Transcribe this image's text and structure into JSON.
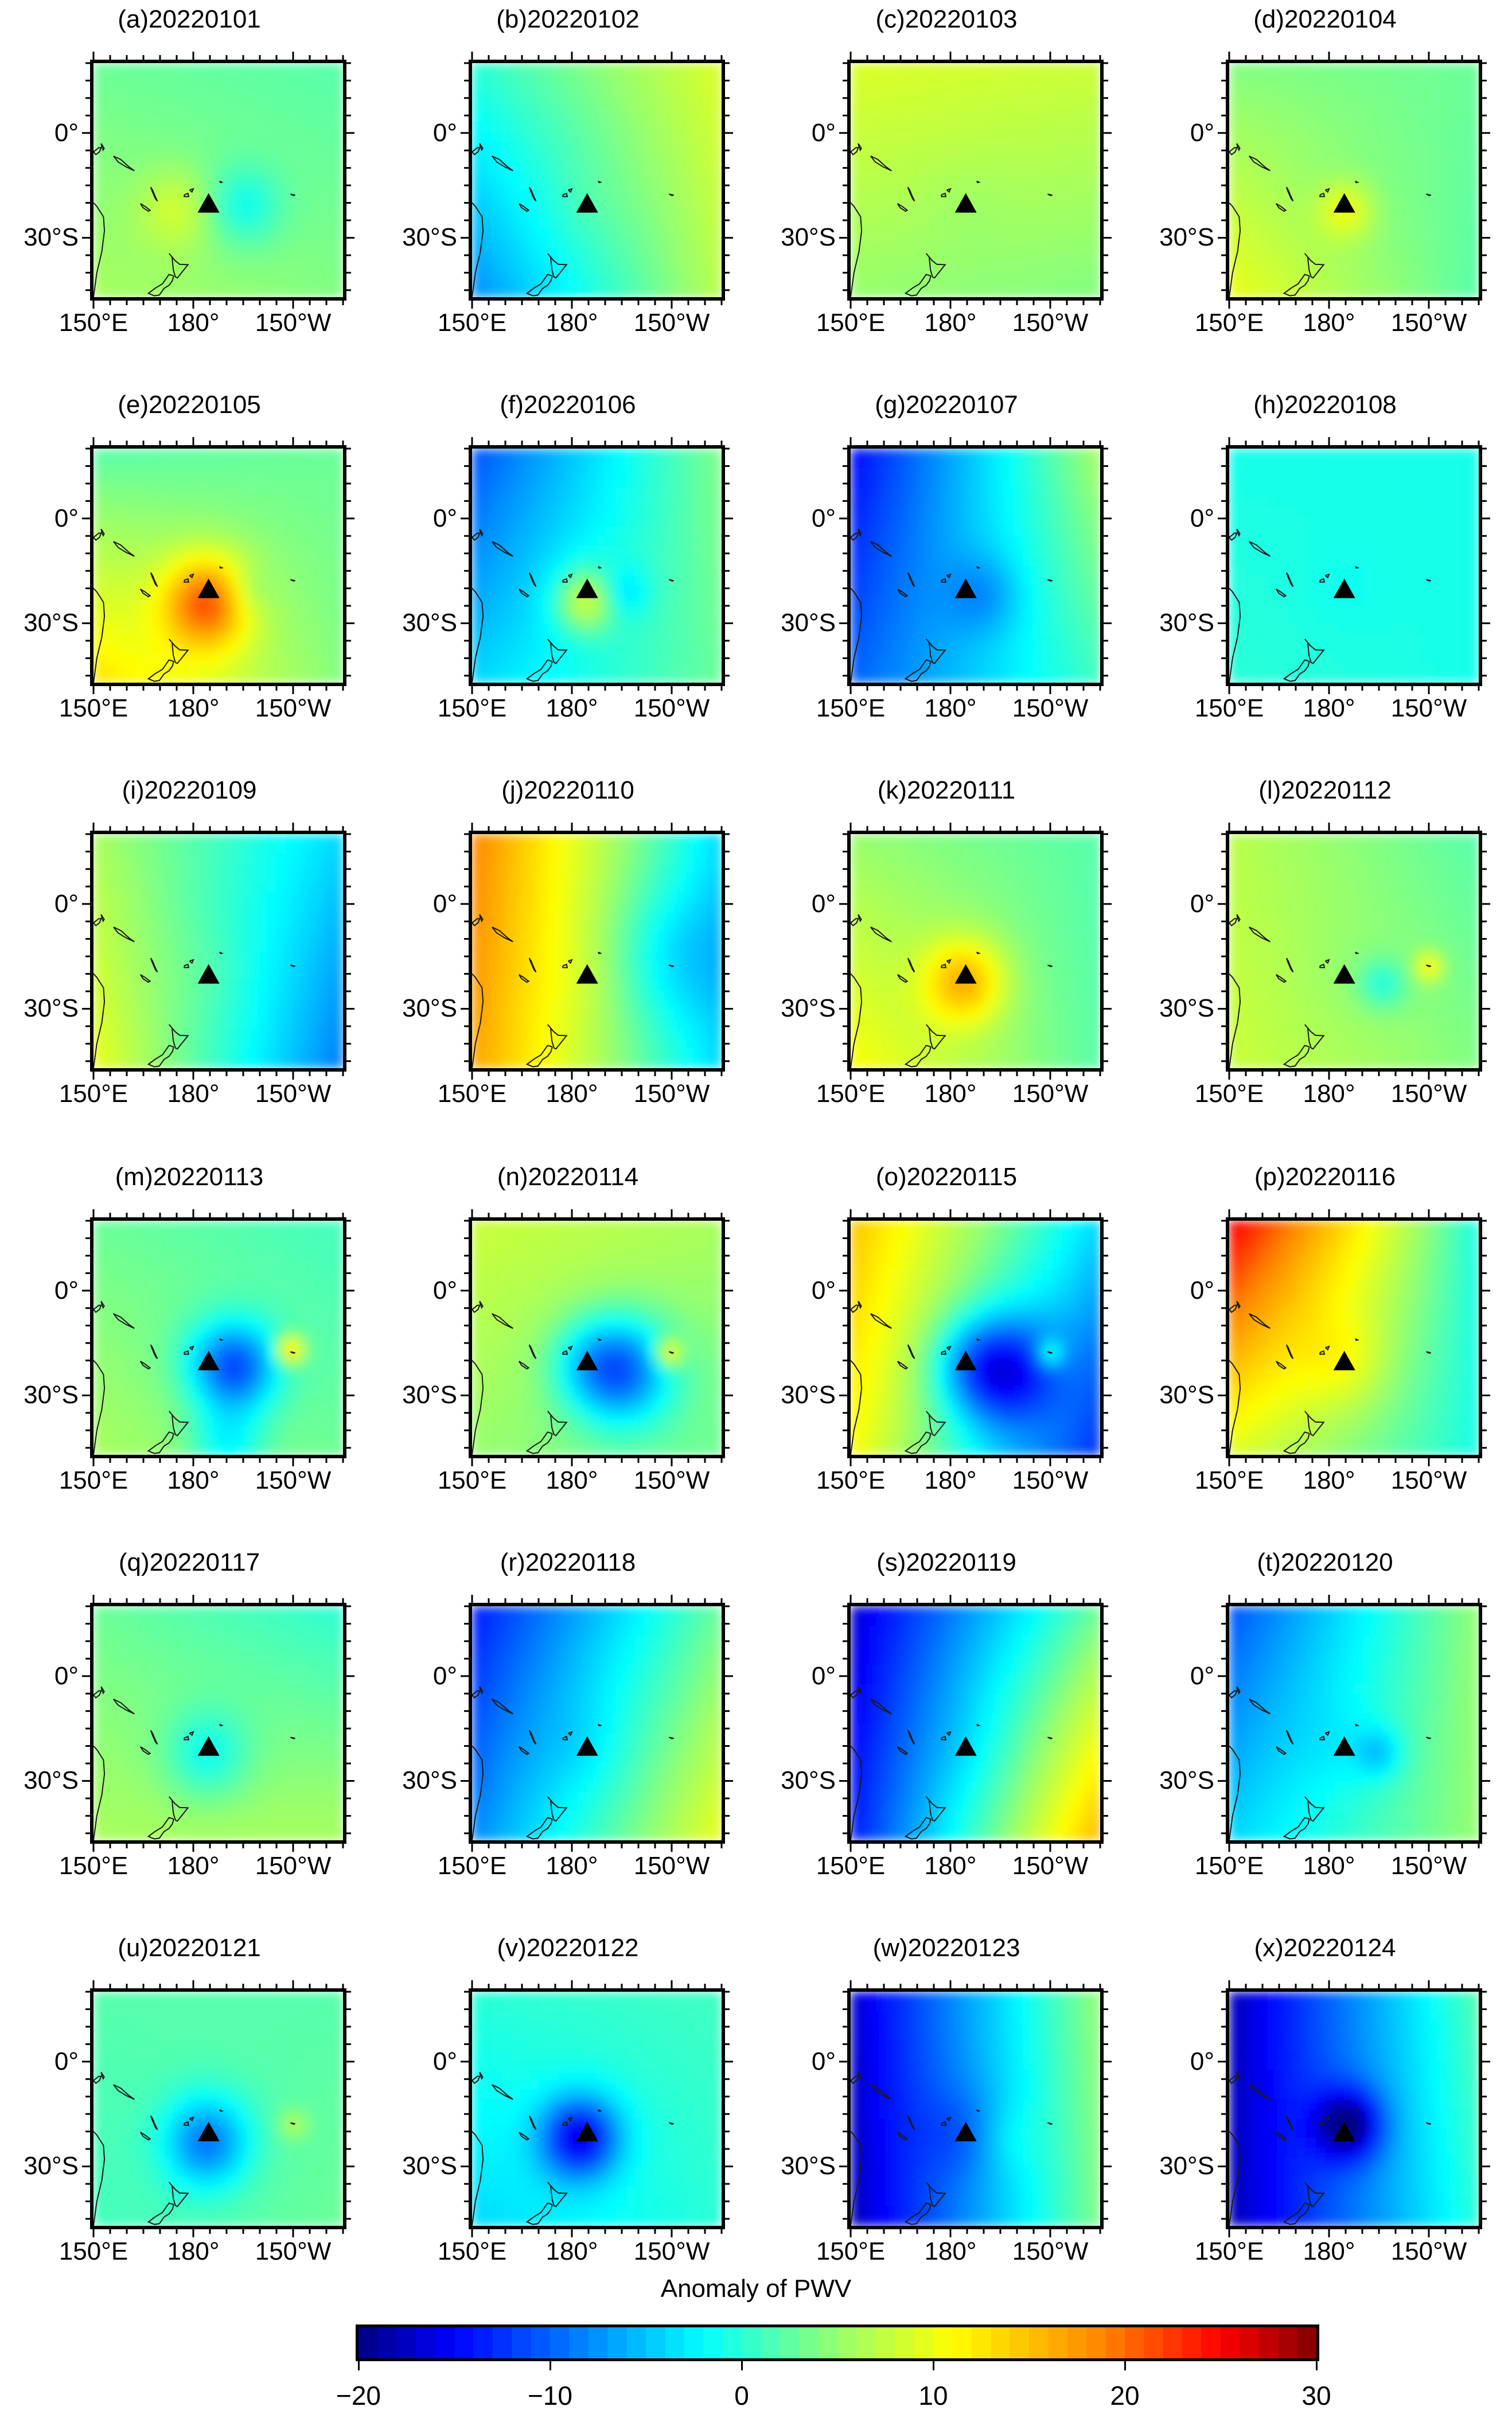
{
  "figure": {
    "colorbar": {
      "title": "Anomaly of PWV",
      "min": -20,
      "max": 30,
      "tick_labels": [
        "−20",
        "−10",
        "0",
        "10",
        "20",
        "30"
      ],
      "tick_values": [
        -20,
        -10,
        0,
        10,
        20,
        30
      ]
    },
    "axes": {
      "lat_labels": [
        "0°",
        "30°S"
      ],
      "lon_labels": [
        "150°E",
        "180°",
        "150°W"
      ],
      "lon_range": [
        150,
        225
      ],
      "lat_range": [
        -47,
        20
      ]
    },
    "volcano_marker": {
      "lon": 184.6,
      "lat": -20.5,
      "symbol": "triangle"
    },
    "panels": [
      {
        "title": "(a)20220101",
        "bg": 3,
        "center": 3,
        "ul": 3,
        "ur": 2,
        "ll": 6,
        "lr": 4,
        "blobs": [
          [
            -5,
            195,
            -21,
            8
          ],
          [
            4,
            175,
            -22,
            8
          ]
        ]
      },
      {
        "title": "(b)20220102",
        "bg": 2,
        "center": 3,
        "ul": 0,
        "ur": 9,
        "ll": -8,
        "lr": 7,
        "blobs": []
      },
      {
        "title": "(c)20220103",
        "bg": 7,
        "center": 6,
        "ul": 9,
        "ur": 8,
        "ll": 5,
        "lr": 4,
        "blobs": []
      },
      {
        "title": "(d)20220104",
        "bg": 6,
        "center": 4,
        "ul": 4,
        "ur": 3,
        "ll": 10,
        "lr": 2,
        "blobs": [
          [
            6,
            185,
            -22,
            6
          ]
        ]
      },
      {
        "title": "(e)20220105",
        "bg": 3,
        "center": 8,
        "ul": 2,
        "ur": 3,
        "ll": 13,
        "lr": 4,
        "blobs": [
          [
            12,
            184,
            -25,
            9
          ],
          [
            -3,
            196,
            -21,
            5
          ]
        ]
      },
      {
        "title": "(f)20220106",
        "bg": -2,
        "center": 1,
        "ul": -11,
        "ur": 4,
        "ll": -4,
        "lr": 3,
        "blobs": [
          [
            8,
            184,
            -24,
            6
          ],
          [
            -4,
            196,
            -21,
            5
          ]
        ]
      },
      {
        "title": "(g)20220107",
        "bg": -3,
        "center": -3,
        "ul": -15,
        "ur": 6,
        "ll": -10,
        "lr": 1,
        "blobs": [
          [
            -4,
            190,
            -22,
            8
          ]
        ]
      },
      {
        "title": "(h)20220108",
        "bg": -1,
        "center": -2,
        "ul": -1,
        "ur": -1,
        "ll": 0,
        "lr": -1,
        "blobs": []
      },
      {
        "title": "(i)20220109",
        "bg": 5,
        "center": 6,
        "ul": 6,
        "ur": -4,
        "ll": 10,
        "lr": -9,
        "blobs": []
      },
      {
        "title": "(j)20220110",
        "bg": 8,
        "center": 9,
        "ul": 19,
        "ur": -4,
        "ll": 17,
        "lr": -4,
        "blobs": [
          [
            -4,
            210,
            -15,
            14
          ]
        ]
      },
      {
        "title": "(k)20220111",
        "bg": 7,
        "center": 13,
        "ul": 5,
        "ur": 2,
        "ll": 11,
        "lr": 2,
        "blobs": [
          [
            7,
            184,
            -23,
            8
          ]
        ]
      },
      {
        "title": "(l)20220112",
        "bg": 5,
        "center": 4,
        "ul": 7,
        "ur": 2,
        "ll": 8,
        "lr": 4,
        "blobs": [
          [
            -5,
            196,
            -23,
            5
          ],
          [
            7,
            210,
            -18,
            3
          ]
        ]
      },
      {
        "title": "(m)20220113",
        "bg": 1,
        "center": -3,
        "ul": 3,
        "ur": 1,
        "ll": 6,
        "lr": 3,
        "blobs": [
          [
            -13,
            193,
            -22,
            9
          ],
          [
            12,
            209,
            -17,
            3
          ],
          [
            -6,
            190,
            -44,
            8
          ]
        ]
      },
      {
        "title": "(n)20220114",
        "bg": 2,
        "center": -5,
        "ul": 8,
        "ur": 6,
        "ll": 5,
        "lr": 3,
        "blobs": [
          [
            -14,
            195,
            -23,
            11
          ],
          [
            10,
            209,
            -18,
            3
          ]
        ]
      },
      {
        "title": "(o)20220115",
        "bg": 3,
        "center": -3,
        "ul": 15,
        "ur": -4,
        "ll": 11,
        "lr": -13,
        "blobs": [
          [
            -14,
            195,
            -23,
            11
          ],
          [
            8,
            210,
            -18,
            3
          ]
        ]
      },
      {
        "title": "(p)20220116",
        "bg": 4,
        "center": 9,
        "ul": 26,
        "ur": -1,
        "ll": 9,
        "lr": -1,
        "blobs": []
      },
      {
        "title": "(q)20220117",
        "bg": 4,
        "center": 3,
        "ul": 3,
        "ur": 0,
        "ll": 6,
        "lr": 6,
        "blobs": [
          [
            -5,
            184,
            -23,
            9
          ]
        ]
      },
      {
        "title": "(r)20220118",
        "bg": -5,
        "center": -7,
        "ul": -14,
        "ur": 3,
        "ll": -8,
        "lr": 10,
        "blobs": []
      },
      {
        "title": "(s)20220119",
        "bg": -5,
        "center": -6,
        "ul": -17,
        "ur": 3,
        "ll": -14,
        "lr": 16,
        "blobs": []
      },
      {
        "title": "(t)20220120",
        "bg": -3,
        "center": -5,
        "ul": -11,
        "ur": 5,
        "ll": -4,
        "lr": 5,
        "blobs": [
          [
            -5,
            195,
            -22,
            5
          ]
        ]
      },
      {
        "title": "(u)20220121",
        "bg": 0,
        "center": -5,
        "ul": 2,
        "ur": 2,
        "ll": 1,
        "lr": 3,
        "blobs": [
          [
            -8,
            184,
            -24,
            9
          ],
          [
            4,
            210,
            -18,
            3
          ]
        ]
      },
      {
        "title": "(v)20220122",
        "bg": -1,
        "center": -6,
        "ul": 0,
        "ur": 1,
        "ll": -4,
        "lr": 0,
        "blobs": [
          [
            -12,
            182,
            -22,
            8
          ]
        ]
      },
      {
        "title": "(w)20220123",
        "bg": -6,
        "center": -11,
        "ul": -17,
        "ur": 5,
        "ll": -18,
        "lr": 4,
        "blobs": [
          [
            2,
            196,
            -22,
            7
          ]
        ]
      },
      {
        "title": "(x)20220124",
        "bg": -8,
        "center": -9,
        "ul": -18,
        "ur": 2,
        "ll": -18,
        "lr": 0,
        "blobs": [
          [
            -12,
            186,
            -18,
            7
          ]
        ]
      }
    ]
  }
}
